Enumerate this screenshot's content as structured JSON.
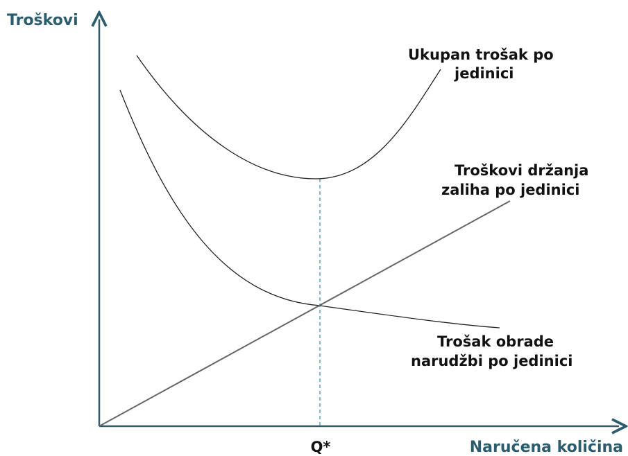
{
  "axes": {
    "y_label": "Troškovi",
    "x_label": "Naručena količina"
  },
  "marker": "Q*",
  "curves": [
    {
      "label_lines": [
        "Ukupan trošak po",
        "jedinici"
      ]
    },
    {
      "label_lines": [
        "Troškovi držanja",
        "zaliha po jedinici"
      ]
    },
    {
      "label_lines": [
        "Trošak obrade",
        "narudžbi po jedinici"
      ]
    }
  ]
}
